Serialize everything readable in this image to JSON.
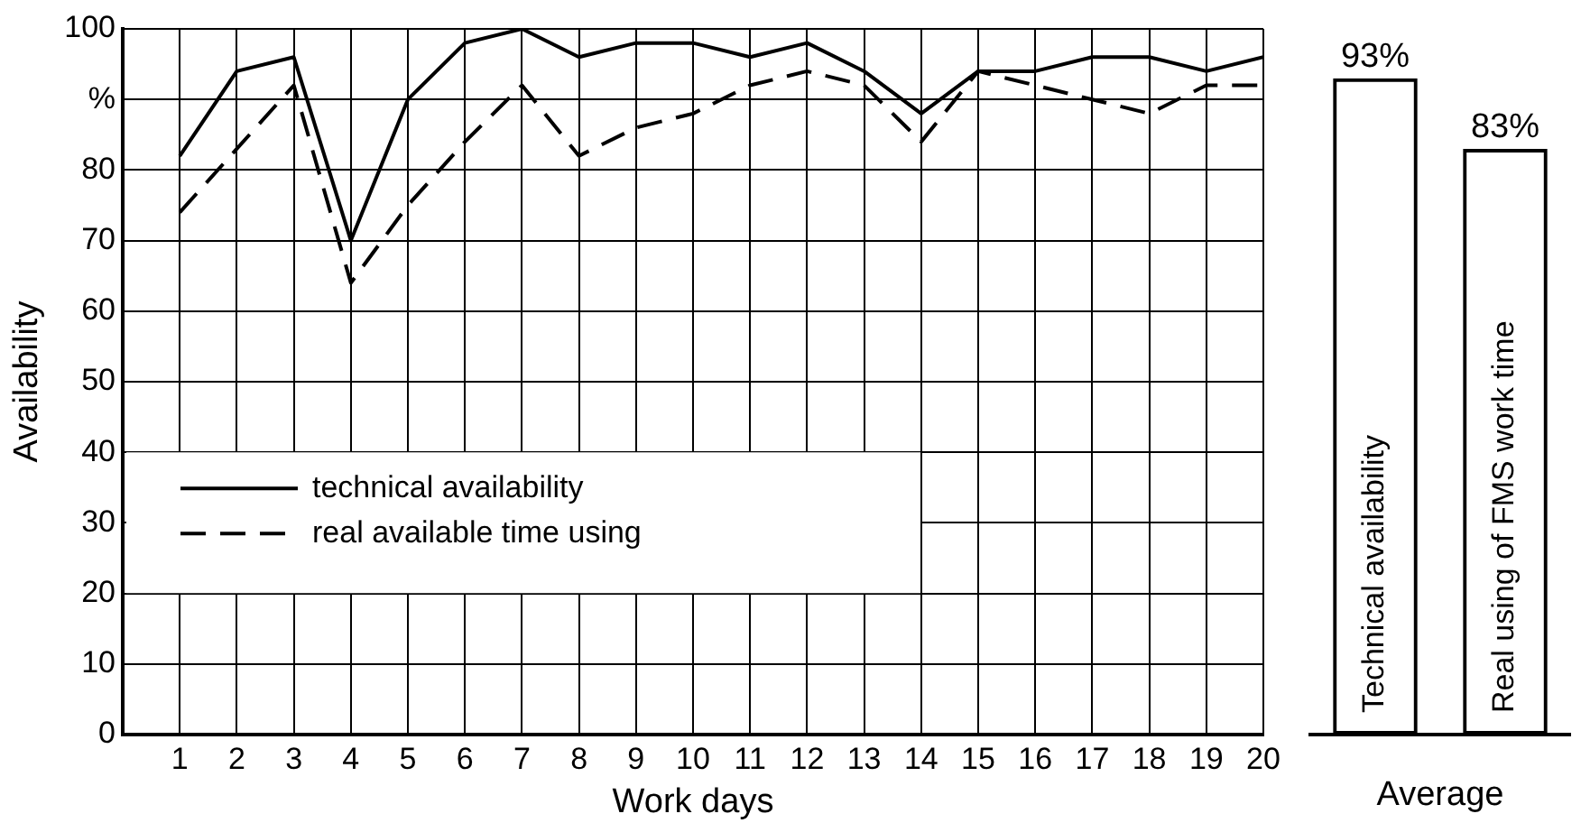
{
  "chart_data": [
    {
      "type": "line",
      "xlabel": "Work days",
      "ylabel": "Availability",
      "xlim": [
        0,
        20
      ],
      "xticks": [
        1,
        2,
        3,
        4,
        5,
        6,
        7,
        8,
        9,
        10,
        11,
        12,
        13,
        14,
        15,
        16,
        17,
        18,
        19,
        20
      ],
      "ylim": [
        0,
        100
      ],
      "yticks": [
        0,
        10,
        20,
        30,
        40,
        50,
        60,
        70,
        80,
        {
          "value": 90,
          "label": "%"
        },
        100
      ],
      "x": [
        1,
        2,
        3,
        4,
        5,
        6,
        7,
        8,
        9,
        10,
        11,
        12,
        13,
        14,
        15,
        16,
        17,
        18,
        19,
        20
      ],
      "series": [
        {
          "name": "technical availability",
          "color": "#000000",
          "line_style": "solid",
          "values": [
            82,
            94,
            96,
            70,
            90,
            98,
            100,
            96,
            98,
            98,
            96,
            98,
            94,
            88,
            94,
            94,
            96,
            96,
            94,
            96
          ]
        },
        {
          "name": "real available time using",
          "color": "#000000",
          "line_style": "dashed",
          "values": [
            74,
            83,
            92,
            64,
            75,
            84,
            92,
            82,
            86,
            88,
            92,
            94,
            92,
            84,
            94,
            92,
            90,
            88,
            92,
            92
          ]
        }
      ],
      "grid": true,
      "legend": "left",
      "marker": "none"
    },
    {
      "type": "bar",
      "xlabel": "Average",
      "categories": [
        "Technical availability",
        "Real using of FMS work time"
      ],
      "values": [
        93,
        83
      ],
      "value_labels": [
        "93%",
        "83%"
      ],
      "color": "#000000",
      "ylim": [
        0,
        100
      ],
      "tick_labels": "x"
    }
  ]
}
